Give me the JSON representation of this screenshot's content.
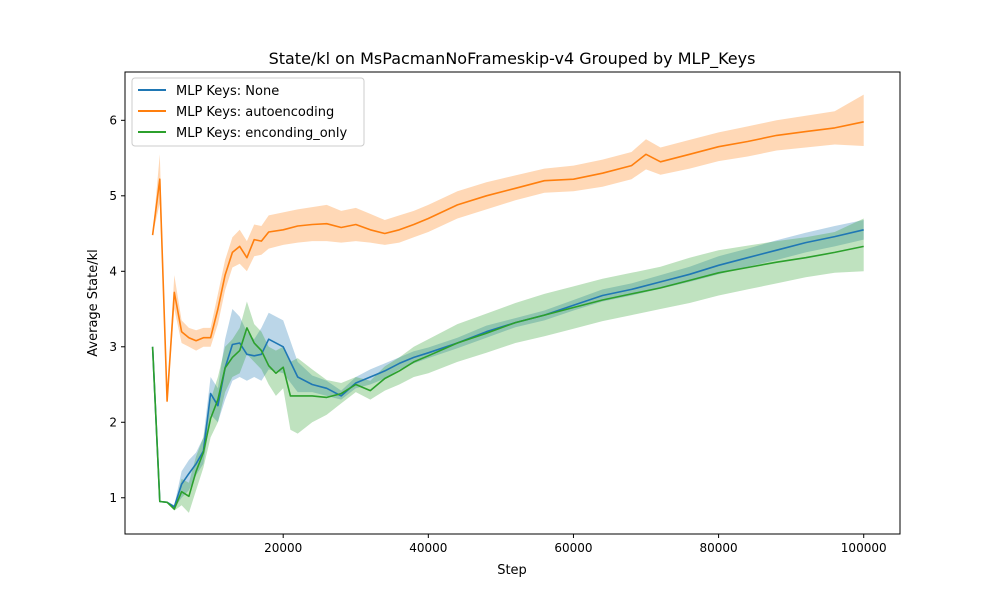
{
  "chart_data": {
    "type": "line",
    "title": "State/kl on MsPacmanNoFrameskip-v4 Grouped by MLP_Keys",
    "xlabel": "Step",
    "ylabel": "Average State/kl",
    "xlim": [
      -1800,
      105000
    ],
    "ylim": [
      0.52,
      6.64
    ],
    "xticks": [
      20000,
      40000,
      60000,
      80000,
      100000
    ],
    "xtick_labels": [
      "20000",
      "40000",
      "60000",
      "80000",
      "100000"
    ],
    "yticks": [
      1,
      2,
      3,
      4,
      5,
      6
    ],
    "ytick_labels": [
      "1",
      "2",
      "3",
      "4",
      "5",
      "6"
    ],
    "grid": false,
    "legend_position": "upper-left",
    "series": [
      {
        "name": "MLP Keys: None",
        "color": "#1f77b4",
        "x": [
          2000,
          3000,
          4000,
          5000,
          6000,
          7000,
          8000,
          9000,
          10000,
          11000,
          12000,
          13000,
          14000,
          15000,
          16000,
          17000,
          18000,
          20000,
          22000,
          24000,
          26000,
          28000,
          30000,
          32000,
          34000,
          36000,
          38000,
          40000,
          44000,
          48000,
          52000,
          56000,
          60000,
          64000,
          68000,
          72000,
          76000,
          80000,
          84000,
          88000,
          92000,
          96000,
          100000
        ],
        "y": [
          3.0,
          0.95,
          0.94,
          0.88,
          1.18,
          1.32,
          1.45,
          1.62,
          2.38,
          2.22,
          2.72,
          3.03,
          3.05,
          2.9,
          2.88,
          2.9,
          3.1,
          3.0,
          2.6,
          2.5,
          2.45,
          2.35,
          2.52,
          2.6,
          2.68,
          2.78,
          2.86,
          2.92,
          3.05,
          3.2,
          3.32,
          3.42,
          3.55,
          3.68,
          3.76,
          3.86,
          3.96,
          4.08,
          4.18,
          4.28,
          4.38,
          4.46,
          4.55
        ],
        "band_low": [
          3.0,
          0.95,
          0.93,
          0.86,
          1.0,
          1.1,
          1.3,
          1.45,
          2.1,
          2.0,
          2.3,
          2.55,
          2.6,
          2.55,
          2.6,
          2.55,
          2.7,
          2.65,
          2.4,
          2.4,
          2.35,
          2.3,
          2.45,
          2.5,
          2.58,
          2.7,
          2.78,
          2.85,
          2.98,
          3.12,
          3.26,
          3.35,
          3.48,
          3.6,
          3.68,
          3.77,
          3.86,
          3.96,
          4.06,
          4.15,
          4.25,
          4.33,
          4.42
        ],
        "band_high": [
          3.0,
          0.95,
          0.95,
          0.9,
          1.35,
          1.5,
          1.6,
          1.8,
          2.6,
          2.45,
          3.1,
          3.5,
          3.4,
          3.2,
          3.1,
          3.25,
          3.45,
          3.35,
          2.8,
          2.62,
          2.55,
          2.42,
          2.6,
          2.7,
          2.78,
          2.86,
          2.94,
          2.99,
          3.12,
          3.28,
          3.38,
          3.48,
          3.62,
          3.76,
          3.84,
          3.95,
          4.06,
          4.2,
          4.3,
          4.41,
          4.51,
          4.6,
          4.68
        ]
      },
      {
        "name": "MLP Keys: autoencoding",
        "color": "#ff7f0e",
        "x": [
          2000,
          3000,
          4000,
          5000,
          6000,
          7000,
          8000,
          9000,
          10000,
          11000,
          12000,
          13000,
          14000,
          15000,
          16000,
          17000,
          18000,
          20000,
          22000,
          24000,
          26000,
          28000,
          30000,
          32000,
          34000,
          36000,
          38000,
          40000,
          44000,
          48000,
          52000,
          56000,
          60000,
          64000,
          68000,
          70000,
          72000,
          76000,
          80000,
          84000,
          88000,
          92000,
          96000,
          100000
        ],
        "y": [
          4.48,
          5.22,
          2.28,
          3.72,
          3.2,
          3.12,
          3.08,
          3.12,
          3.12,
          3.5,
          3.95,
          4.25,
          4.33,
          4.18,
          4.42,
          4.4,
          4.52,
          4.55,
          4.6,
          4.62,
          4.63,
          4.58,
          4.62,
          4.55,
          4.5,
          4.55,
          4.62,
          4.7,
          4.88,
          5.0,
          5.1,
          5.2,
          5.22,
          5.3,
          5.4,
          5.55,
          5.45,
          5.55,
          5.65,
          5.72,
          5.8,
          5.85,
          5.9,
          5.98
        ],
        "band_low": [
          4.48,
          4.9,
          2.25,
          3.5,
          3.05,
          3.0,
          2.95,
          3.0,
          3.0,
          3.3,
          3.75,
          4.05,
          4.1,
          4.0,
          4.2,
          4.22,
          4.3,
          4.35,
          4.38,
          4.4,
          4.4,
          4.38,
          4.4,
          4.38,
          4.35,
          4.38,
          4.45,
          4.52,
          4.7,
          4.82,
          4.94,
          5.04,
          5.06,
          5.12,
          5.22,
          5.35,
          5.28,
          5.36,
          5.46,
          5.52,
          5.6,
          5.64,
          5.68,
          5.66
        ],
        "band_high": [
          4.48,
          5.55,
          2.32,
          3.95,
          3.35,
          3.25,
          3.22,
          3.25,
          3.25,
          3.7,
          4.15,
          4.45,
          4.55,
          4.4,
          4.62,
          4.6,
          4.74,
          4.78,
          4.82,
          4.85,
          4.88,
          4.8,
          4.84,
          4.76,
          4.68,
          4.74,
          4.8,
          4.88,
          5.06,
          5.18,
          5.27,
          5.36,
          5.4,
          5.48,
          5.58,
          5.75,
          5.64,
          5.74,
          5.84,
          5.92,
          6.0,
          6.06,
          6.12,
          6.34
        ]
      },
      {
        "name": "MLP Keys: enconding_only",
        "color": "#2ca02c",
        "x": [
          2000,
          3000,
          4000,
          5000,
          6000,
          7000,
          8000,
          9000,
          10000,
          11000,
          12000,
          13000,
          14000,
          15000,
          16000,
          17000,
          18000,
          19000,
          20000,
          21000,
          22000,
          24000,
          26000,
          28000,
          30000,
          32000,
          34000,
          36000,
          38000,
          40000,
          44000,
          48000,
          52000,
          56000,
          60000,
          64000,
          68000,
          72000,
          76000,
          80000,
          84000,
          88000,
          92000,
          96000,
          100000
        ],
        "y": [
          3.0,
          0.95,
          0.94,
          0.85,
          1.08,
          1.02,
          1.35,
          1.6,
          2.05,
          2.3,
          2.72,
          2.86,
          2.95,
          3.25,
          3.05,
          2.95,
          2.75,
          2.65,
          2.73,
          2.35,
          2.35,
          2.35,
          2.33,
          2.38,
          2.5,
          2.42,
          2.58,
          2.68,
          2.8,
          2.88,
          3.05,
          3.18,
          3.32,
          3.42,
          3.52,
          3.62,
          3.7,
          3.78,
          3.88,
          3.98,
          4.05,
          4.12,
          4.18,
          4.25,
          4.33
        ],
        "band_low": [
          3.0,
          0.95,
          0.93,
          0.83,
          0.9,
          0.8,
          1.1,
          1.4,
          1.8,
          2.0,
          2.4,
          2.6,
          2.65,
          2.9,
          2.8,
          2.7,
          2.5,
          2.35,
          2.45,
          1.9,
          1.85,
          2.0,
          2.1,
          2.25,
          2.4,
          2.3,
          2.42,
          2.5,
          2.6,
          2.65,
          2.8,
          2.92,
          3.05,
          3.14,
          3.24,
          3.34,
          3.42,
          3.5,
          3.58,
          3.68,
          3.76,
          3.84,
          3.92,
          3.98,
          4.0
        ],
        "band_high": [
          3.0,
          0.95,
          0.95,
          0.88,
          1.25,
          1.2,
          1.55,
          1.8,
          2.3,
          2.6,
          3.0,
          3.1,
          3.25,
          3.6,
          3.3,
          3.2,
          3.0,
          2.95,
          3.0,
          2.8,
          2.85,
          2.7,
          2.56,
          2.52,
          2.6,
          2.55,
          2.74,
          2.86,
          3.0,
          3.1,
          3.3,
          3.44,
          3.58,
          3.7,
          3.8,
          3.9,
          3.98,
          4.06,
          4.18,
          4.28,
          4.34,
          4.4,
          4.45,
          4.52,
          4.7
        ]
      }
    ]
  }
}
